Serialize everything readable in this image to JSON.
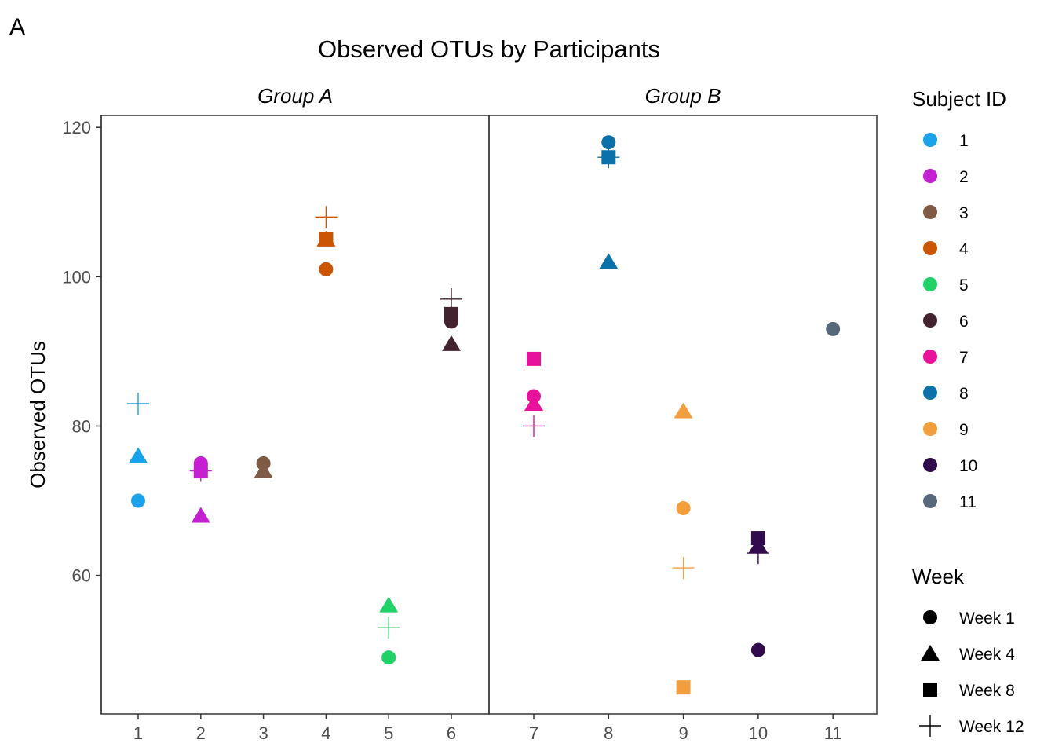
{
  "figure": {
    "panel_tag": "A",
    "title": "Observed OTUs by Participants"
  },
  "chart_data": {
    "type": "scatter",
    "title": "Observed OTUs by Participants",
    "xlabel": "",
    "ylabel": "Observed OTUs",
    "ylim": [
      41,
      122
    ],
    "yticks": [
      60,
      80,
      100,
      120
    ],
    "grid": false,
    "legend_position": "right",
    "facets": [
      {
        "label": "Group A",
        "subjects": [
          "1",
          "2",
          "3",
          "4",
          "5",
          "6"
        ]
      },
      {
        "label": "Group B",
        "subjects": [
          "7",
          "8",
          "9",
          "10",
          "11"
        ]
      }
    ],
    "subject_colors": {
      "1": "#1aa3e8",
      "2": "#c41fd0",
      "3": "#7f5a45",
      "4": "#cc5500",
      "5": "#1fd166",
      "6": "#42232f",
      "7": "#e8119b",
      "8": "#0a72a8",
      "9": "#f29e3d",
      "10": "#320a4e",
      "11": "#56687a"
    },
    "week_shapes": {
      "Week 1": "circle",
      "Week 4": "triangle",
      "Week 8": "square",
      "Week 12": "plus"
    },
    "points": [
      {
        "subject": "1",
        "week": "Week 1",
        "y": 70
      },
      {
        "subject": "1",
        "week": "Week 4",
        "y": 76
      },
      {
        "subject": "1",
        "week": "Week 12",
        "y": 83
      },
      {
        "subject": "2",
        "week": "Week 1",
        "y": 75
      },
      {
        "subject": "2",
        "week": "Week 4",
        "y": 68
      },
      {
        "subject": "2",
        "week": "Week 8",
        "y": 74
      },
      {
        "subject": "2",
        "week": "Week 12",
        "y": 74
      },
      {
        "subject": "3",
        "week": "Week 1",
        "y": 75
      },
      {
        "subject": "3",
        "week": "Week 4",
        "y": 74
      },
      {
        "subject": "4",
        "week": "Week 1",
        "y": 101
      },
      {
        "subject": "4",
        "week": "Week 4",
        "y": 105
      },
      {
        "subject": "4",
        "week": "Week 8",
        "y": 105
      },
      {
        "subject": "4",
        "week": "Week 12",
        "y": 108
      },
      {
        "subject": "5",
        "week": "Week 1",
        "y": 49
      },
      {
        "subject": "5",
        "week": "Week 4",
        "y": 56
      },
      {
        "subject": "5",
        "week": "Week 12",
        "y": 53
      },
      {
        "subject": "6",
        "week": "Week 1",
        "y": 94
      },
      {
        "subject": "6",
        "week": "Week 4",
        "y": 91
      },
      {
        "subject": "6",
        "week": "Week 8",
        "y": 95
      },
      {
        "subject": "6",
        "week": "Week 12",
        "y": 97
      },
      {
        "subject": "7",
        "week": "Week 1",
        "y": 84
      },
      {
        "subject": "7",
        "week": "Week 4",
        "y": 83
      },
      {
        "subject": "7",
        "week": "Week 8",
        "y": 89
      },
      {
        "subject": "7",
        "week": "Week 12",
        "y": 80
      },
      {
        "subject": "8",
        "week": "Week 1",
        "y": 118
      },
      {
        "subject": "8",
        "week": "Week 4",
        "y": 102
      },
      {
        "subject": "8",
        "week": "Week 8",
        "y": 116
      },
      {
        "subject": "8",
        "week": "Week 12",
        "y": 116
      },
      {
        "subject": "9",
        "week": "Week 1",
        "y": 69
      },
      {
        "subject": "9",
        "week": "Week 4",
        "y": 82
      },
      {
        "subject": "9",
        "week": "Week 8",
        "y": 45
      },
      {
        "subject": "9",
        "week": "Week 12",
        "y": 61
      },
      {
        "subject": "10",
        "week": "Week 1",
        "y": 50
      },
      {
        "subject": "10",
        "week": "Week 4",
        "y": 64
      },
      {
        "subject": "10",
        "week": "Week 8",
        "y": 65
      },
      {
        "subject": "10",
        "week": "Week 12",
        "y": 63
      },
      {
        "subject": "11",
        "week": "Week 1",
        "y": 93
      }
    ],
    "legend": {
      "subject": {
        "title": "Subject ID",
        "entries": [
          "1",
          "2",
          "3",
          "4",
          "5",
          "6",
          "7",
          "8",
          "9",
          "10",
          "11"
        ]
      },
      "week": {
        "title": "Week",
        "entries": [
          "Week 1",
          "Week 4",
          "Week 8",
          "Week 12"
        ]
      }
    }
  }
}
